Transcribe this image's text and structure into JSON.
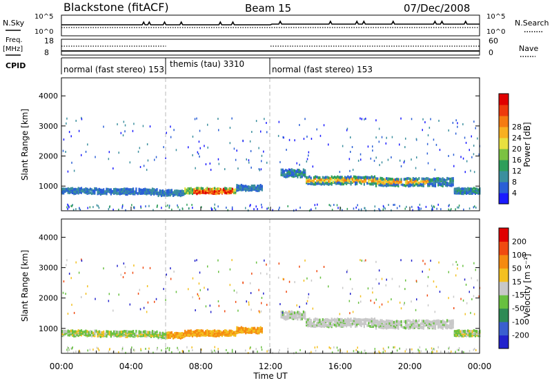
{
  "header": {
    "station": "Blackstone (fitACF)",
    "beam": "Beam 15",
    "date": "07/Dec/2008"
  },
  "top_panels": {
    "nsky_label": "N.Sky",
    "nsky_ticks": [
      "10^5",
      "10^0"
    ],
    "nsky_right_ticks": [
      "10^5",
      "10^0"
    ],
    "nsearch_label": "N.Search",
    "freq_label": "Freq.",
    "freq_unit": "[MHz]",
    "freq_ticks": [
      "18",
      "8"
    ],
    "nave_ticks": [
      "60",
      "0"
    ],
    "nave_label": "Nave",
    "cpid_label": "CPID",
    "cpid_segments": [
      {
        "label": "normal (fast stereo) 153",
        "start_hour": 0,
        "end_hour": 6
      },
      {
        "label": "themis (tau) 3310",
        "start_hour": 6,
        "end_hour": 12
      },
      {
        "label": "normal (fast stereo) 153",
        "start_hour": 12,
        "end_hour": 24
      }
    ]
  },
  "chart_data": [
    {
      "type": "heatmap",
      "name": "power",
      "ylabel": "Slant Range [km]",
      "ylim": [
        180,
        4600
      ],
      "yticks": [
        "1000",
        "2000",
        "3000",
        "4000"
      ],
      "xlim": [
        0,
        24
      ],
      "colorbar_label": "Power [dB]",
      "colorbar_ticks": [
        "4",
        "8",
        "12",
        "16",
        "20",
        "24",
        "28"
      ],
      "colorbar_colors": [
        "#1a1aff",
        "#2a5fd6",
        "#3b8f9e",
        "#2e9e5a",
        "#7bc242",
        "#e8e040",
        "#f8b020",
        "#f57b10",
        "#ee3a0c",
        "#e00000"
      ],
      "echo_bands": [
        {
          "start_hour": 0.0,
          "end_hour": 2.0,
          "range_km": 850
        },
        {
          "start_hour": 2.0,
          "end_hour": 5.5,
          "range_km": 830
        },
        {
          "start_hour": 5.5,
          "end_hour": 7.0,
          "range_km": 780
        },
        {
          "start_hour": 7.0,
          "end_hour": 10.0,
          "range_km": 850
        },
        {
          "start_hour": 10.0,
          "end_hour": 11.5,
          "range_km": 950
        },
        {
          "start_hour": 12.5,
          "end_hour": 14.0,
          "range_km": 1450
        },
        {
          "start_hour": 14.0,
          "end_hour": 18.0,
          "range_km": 1200
        },
        {
          "start_hour": 18.0,
          "end_hour": 22.5,
          "range_km": 1150
        },
        {
          "start_hour": 22.5,
          "end_hour": 24.0,
          "range_km": 850
        }
      ]
    },
    {
      "type": "heatmap",
      "name": "velocity",
      "ylabel": "Slant Range [km]",
      "ylim": [
        180,
        4600
      ],
      "yticks": [
        "1000",
        "2000",
        "3000",
        "4000"
      ],
      "xlim": [
        0,
        24
      ],
      "xticks": [
        "00:00",
        "04:00",
        "08:00",
        "12:00",
        "16:00",
        "20:00",
        "00:00"
      ],
      "xlabel": "Time UT",
      "colorbar_label": "Velocity [m s⁻¹]",
      "colorbar_ticks": [
        "200",
        "100",
        "50",
        "15",
        "-15",
        "-50",
        "-100",
        "-200"
      ],
      "colorbar_colors": [
        "#2222cc",
        "#3a5fd0",
        "#2e8a55",
        "#68c040",
        "#c8c8c8",
        "#f3c020",
        "#f58a10",
        "#f04a10",
        "#e00000"
      ]
    }
  ]
}
